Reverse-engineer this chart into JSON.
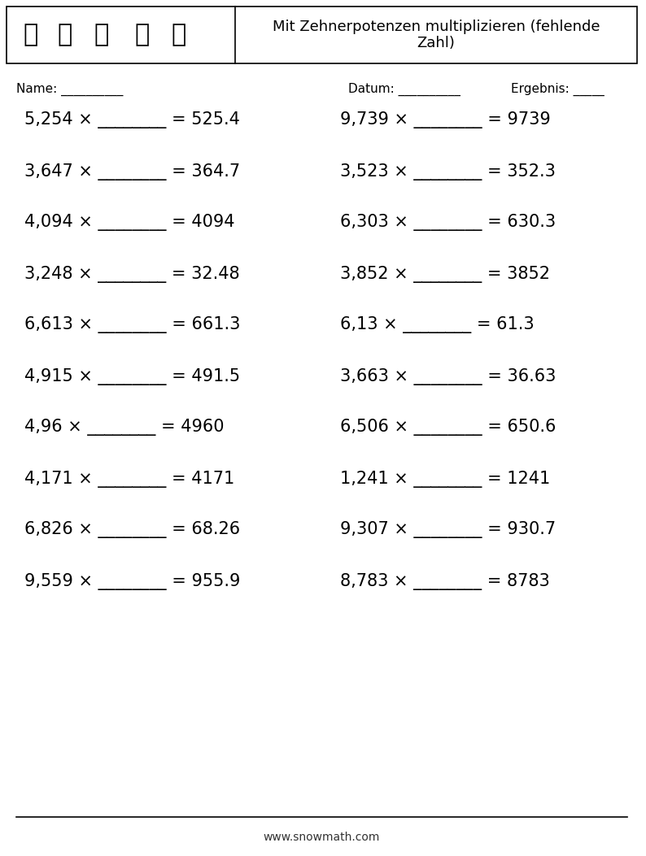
{
  "title": "Mit Zehnerpotenzen multiplizieren (fehlende\nZahl)",
  "name_label": "Name: __________",
  "datum_label": "Datum: __________",
  "ergebnis_label": "Ergebnis: _____",
  "website": "www.snowmath.com",
  "left_problems": [
    "5,254 × ________ = 525.4",
    "3,647 × ________ = 364.7",
    "4,094 × ________ = 4094",
    "3,248 × ________ = 32.48",
    "6,613 × ________ = 661.3",
    "4,915 × ________ = 491.5",
    "4,96 × ________ = 4960",
    "4,171 × ________ = 4171",
    "6,826 × ________ = 68.26",
    "9,559 × ________ = 955.9"
  ],
  "right_problems": [
    "9,739 × ________ = 9739",
    "3,523 × ________ = 352.3",
    "6,303 × ________ = 630.3",
    "3,852 × ________ = 3852",
    "6,13 × ________ = 61.3",
    "3,663 × ________ = 36.63",
    "6,506 × ________ = 650.6",
    "1,241 × ________ = 1241",
    "9,307 × ________ = 930.7",
    "8,783 × ________ = 8783"
  ],
  "bg_color": "#ffffff",
  "text_color": "#000000",
  "header_box_color": "#000000",
  "font_size_problems": 15,
  "font_size_header": 13,
  "font_size_labels": 11,
  "font_size_website": 10
}
